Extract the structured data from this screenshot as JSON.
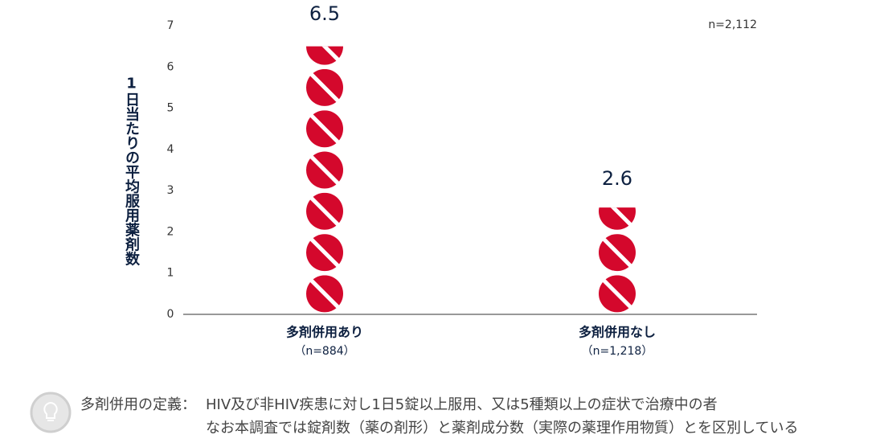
{
  "chart_data": {
    "type": "pictogram",
    "ylabel": "1日当たりの平均服用薬剤数",
    "annotation": "n=2,112",
    "categories": [
      "多剤併用あり",
      "多剤併用なし"
    ],
    "category_notes": [
      "（n=884）",
      "（n=1,218）"
    ],
    "values": [
      6.5,
      2.6
    ],
    "color": "#d4082c",
    "ylim": [
      0,
      7
    ],
    "yticks": [
      0,
      1,
      2,
      3,
      4,
      5,
      6,
      7
    ],
    "note_label": "多剤併用の定義：",
    "note_lines": [
      "HIV及び非HIV疾患に対し1日5錠以上服用、又は5種類以上の症状で治療中の者",
      "なお本調査では錠剤数（薬の剤形）と薬剤成分数（実際の薬理作用物質）とを区別している"
    ]
  }
}
